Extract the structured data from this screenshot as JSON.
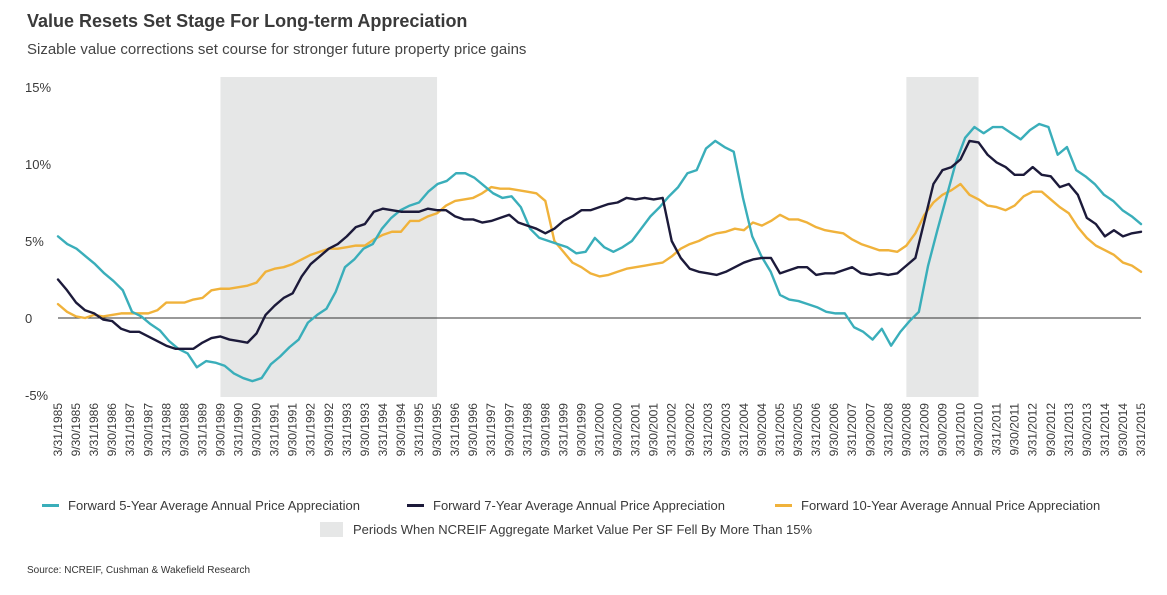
{
  "title": "Value Resets Set Stage For Long-term Appreciation",
  "subtitle": "Sizable value corrections set course for stronger future property price gains",
  "source": "Source: NCREIF, Cushman & Wakefield Research",
  "colors": {
    "fwd5": "#3aaeba",
    "fwd7": "#1c1a3a",
    "fwd10": "#f0b23b",
    "shade": "#e6e7e7",
    "zero_line": "#333333"
  },
  "chart_data": {
    "type": "line",
    "ylim": [
      -5,
      15
    ],
    "y_ticks": [
      {
        "value": 15,
        "label": "15%"
      },
      {
        "value": 10,
        "label": "10%"
      },
      {
        "value": 5,
        "label": "5%"
      },
      {
        "value": 0,
        "label": "0"
      },
      {
        "value": -5,
        "label": "-5%"
      }
    ],
    "x_labels": [
      "3/31/1985",
      "9/30/1985",
      "3/31/1986",
      "9/30/1986",
      "3/31/1987",
      "9/30/1987",
      "3/31/1988",
      "9/30/1988",
      "3/31/1989",
      "9/30/1989",
      "3/31/1990",
      "9/30/1990",
      "3/31/1991",
      "9/30/1991",
      "3/31/1992",
      "9/30/1992",
      "3/31/1993",
      "9/30/1993",
      "3/31/1994",
      "9/30/1994",
      "3/31/1995",
      "9/30/1995",
      "3/31/1996",
      "9/30/1996",
      "3/31/1997",
      "9/30/1997",
      "3/31/1998",
      "9/30/1998",
      "3/31/1999",
      "9/30/1999",
      "3/31/2000",
      "9/30/2000",
      "3/31/2001",
      "9/30/2001",
      "3/31/2002",
      "9/30/2002",
      "3/31/2003",
      "9/30/2003",
      "3/31/2004",
      "9/30/2004",
      "3/31/2005",
      "9/30/2005",
      "3/31/2006",
      "9/30/2006",
      "3/31/2007",
      "9/30/2007",
      "3/31/2008",
      "9/30/2008",
      "3/31/2009",
      "9/30/2009",
      "3/31/2010",
      "9/30/2010",
      "3/31/2011",
      "9/30/2011",
      "3/31/2012",
      "9/30/2012",
      "3/31/2013",
      "9/30/2013",
      "3/31/2014",
      "9/30/2014",
      "3/31/2015"
    ],
    "shaded_periods": [
      {
        "start": "9/30/1989",
        "end": "9/30/1995"
      },
      {
        "start": "9/30/2008",
        "end": "9/30/2010"
      }
    ],
    "shade_legend": "Periods When NCREIF Aggregate Market Value Per SF Fell By More Than 15%",
    "series": [
      {
        "name": "Forward 5-Year Average Annual Price Appreciation",
        "color_key": "fwd5",
        "values": [
          5.3,
          4.8,
          4.5,
          4.0,
          3.5,
          2.9,
          2.4,
          1.8,
          0.4,
          0.1,
          -0.4,
          -0.8,
          -1.5,
          -2.0,
          -2.3,
          -3.2,
          -2.8,
          -2.9,
          -3.1,
          -3.6,
          -3.9,
          -4.1,
          -3.9,
          -3.0,
          -2.5,
          -1.9,
          -1.4,
          -0.3,
          0.2,
          0.6,
          1.7,
          3.3,
          3.8,
          4.5,
          4.8,
          5.8,
          6.5,
          7.0,
          7.3,
          7.5,
          8.2,
          8.7,
          8.9,
          9.4,
          9.4,
          9.1,
          8.6,
          8.1,
          7.8,
          7.9,
          7.2,
          5.8,
          5.2,
          5.0,
          4.8,
          4.6,
          4.2,
          4.3,
          5.2,
          4.6,
          4.3,
          4.6,
          5.0,
          5.8,
          6.6,
          7.2,
          7.9,
          8.5,
          9.4,
          9.6,
          11.0,
          11.5,
          11.1,
          10.8,
          7.8,
          5.3,
          4.0,
          3.0,
          1.5,
          1.2,
          1.1,
          0.9,
          0.7,
          0.4,
          0.3,
          0.3,
          -0.6,
          -0.9,
          -1.4,
          -0.7,
          -1.8,
          -0.9,
          -0.2,
          0.4,
          3.4,
          5.7,
          7.9,
          10.1,
          11.7,
          12.4,
          12.0,
          12.4,
          12.4,
          12.0,
          11.6,
          12.2,
          12.6,
          12.4,
          10.6,
          11.1,
          9.6,
          9.2,
          8.7,
          8.0,
          7.6,
          7.0,
          6.6,
          6.1
        ]
      },
      {
        "name": "Forward 7-Year Average Annual Price Appreciation",
        "color_key": "fwd7",
        "values": [
          2.5,
          1.8,
          1.0,
          0.5,
          0.3,
          -0.1,
          -0.2,
          -0.7,
          -0.9,
          -0.9,
          -1.2,
          -1.5,
          -1.8,
          -2.0,
          -2.0,
          -2.0,
          -1.6,
          -1.3,
          -1.2,
          -1.4,
          -1.5,
          -1.6,
          -1.0,
          0.2,
          0.8,
          1.3,
          1.6,
          2.7,
          3.5,
          4.0,
          4.5,
          4.8,
          5.3,
          5.9,
          6.1,
          6.9,
          7.1,
          7.0,
          6.9,
          6.9,
          6.9,
          7.1,
          7.0,
          7.0,
          6.6,
          6.4,
          6.4,
          6.2,
          6.3,
          6.5,
          6.7,
          6.2,
          6.0,
          5.8,
          5.5,
          5.8,
          6.3,
          6.6,
          7.0,
          7.0,
          7.2,
          7.4,
          7.5,
          7.8,
          7.7,
          7.8,
          7.7,
          7.8,
          5.0,
          3.9,
          3.2,
          3.0,
          2.9,
          2.8,
          3.0,
          3.3,
          3.6,
          3.8,
          3.9,
          3.9,
          2.9,
          3.1,
          3.3,
          3.3,
          2.8,
          2.9,
          2.9,
          3.1,
          3.3,
          2.9,
          2.8,
          2.9,
          2.8,
          2.9,
          3.4,
          3.9,
          6.3,
          8.7,
          9.6,
          9.8,
          10.3,
          11.5,
          11.4,
          10.6,
          10.1,
          9.8,
          9.3,
          9.3,
          9.8,
          9.3,
          9.2,
          8.5,
          8.7,
          8.0,
          6.5,
          6.1,
          5.3,
          5.7,
          5.3,
          5.5,
          5.6
        ]
      },
      {
        "name": "Forward 10-Year Average Annual Price Appreciation",
        "color_key": "fwd10",
        "values": [
          0.9,
          0.4,
          0.1,
          0.0,
          0.2,
          0.1,
          0.2,
          0.3,
          0.3,
          0.3,
          0.3,
          0.5,
          1.0,
          1.0,
          1.0,
          1.2,
          1.3,
          1.8,
          1.9,
          1.9,
          2.0,
          2.1,
          2.3,
          3.0,
          3.2,
          3.3,
          3.5,
          3.8,
          4.1,
          4.3,
          4.5,
          4.5,
          4.6,
          4.7,
          4.7,
          5.1,
          5.4,
          5.6,
          5.6,
          6.3,
          6.3,
          6.6,
          6.8,
          7.3,
          7.6,
          7.7,
          7.8,
          8.1,
          8.5,
          8.4,
          8.4,
          8.3,
          8.2,
          8.1,
          7.6,
          5.0,
          4.3,
          3.6,
          3.3,
          2.9,
          2.7,
          2.8,
          3.0,
          3.2,
          3.3,
          3.4,
          3.5,
          3.6,
          4.0,
          4.5,
          4.8,
          5.0,
          5.3,
          5.5,
          5.6,
          5.8,
          5.7,
          6.2,
          6.0,
          6.3,
          6.7,
          6.4,
          6.4,
          6.2,
          5.9,
          5.7,
          5.6,
          5.5,
          5.1,
          4.8,
          4.6,
          4.4,
          4.4,
          4.3,
          4.7,
          5.5,
          6.7,
          7.5,
          8.0,
          8.3,
          8.7,
          8.0,
          7.7,
          7.3,
          7.2,
          7.0,
          7.3,
          7.9,
          8.2,
          8.2,
          7.7,
          7.2,
          6.8,
          5.9,
          5.2,
          4.7,
          4.4,
          4.1,
          3.6,
          3.4,
          3.0
        ]
      }
    ]
  }
}
